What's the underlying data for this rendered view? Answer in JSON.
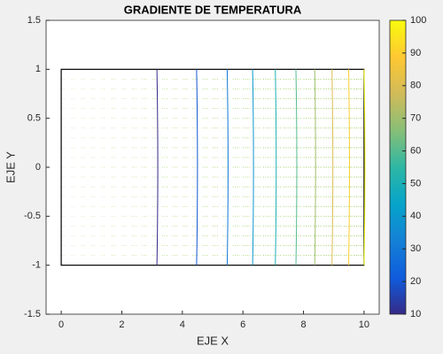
{
  "chart_data": {
    "type": "contour",
    "title": "GRADIENTE DE TEMPERATURA",
    "xlabel": "EJE X",
    "ylabel": "EJE Y",
    "xlim": [
      -0.5,
      10.5
    ],
    "ylim": [
      -1.5,
      1.5
    ],
    "xticks": [
      0,
      2,
      4,
      6,
      8,
      10
    ],
    "yticks": [
      -1.5,
      -1,
      -0.5,
      0,
      0.5,
      1,
      1.5
    ],
    "domain": {
      "x": [
        0,
        10
      ],
      "y": [
        -1,
        1
      ]
    },
    "contours": [
      {
        "level": 10,
        "x": 3.16
      },
      {
        "level": 20,
        "x": 4.47
      },
      {
        "level": 30,
        "x": 5.48
      },
      {
        "level": 40,
        "x": 6.32
      },
      {
        "level": 50,
        "x": 7.07
      },
      {
        "level": 60,
        "x": 7.75
      },
      {
        "level": 70,
        "x": 8.37
      },
      {
        "level": 80,
        "x": 8.94
      },
      {
        "level": 90,
        "x": 9.49
      },
      {
        "level": 100,
        "x": 10
      }
    ],
    "colorbar": {
      "clim": [
        10,
        100
      ],
      "ticks": [
        10,
        20,
        30,
        40,
        50,
        60,
        70,
        80,
        90,
        100
      ],
      "colormap": [
        "#352a87",
        "#0f5cdd",
        "#1481d6",
        "#06a4ca",
        "#2eb7a4",
        "#87bf77",
        "#d1bb59",
        "#fec832",
        "#f9fb0e"
      ]
    },
    "quiver_color": "#8cc63f"
  }
}
